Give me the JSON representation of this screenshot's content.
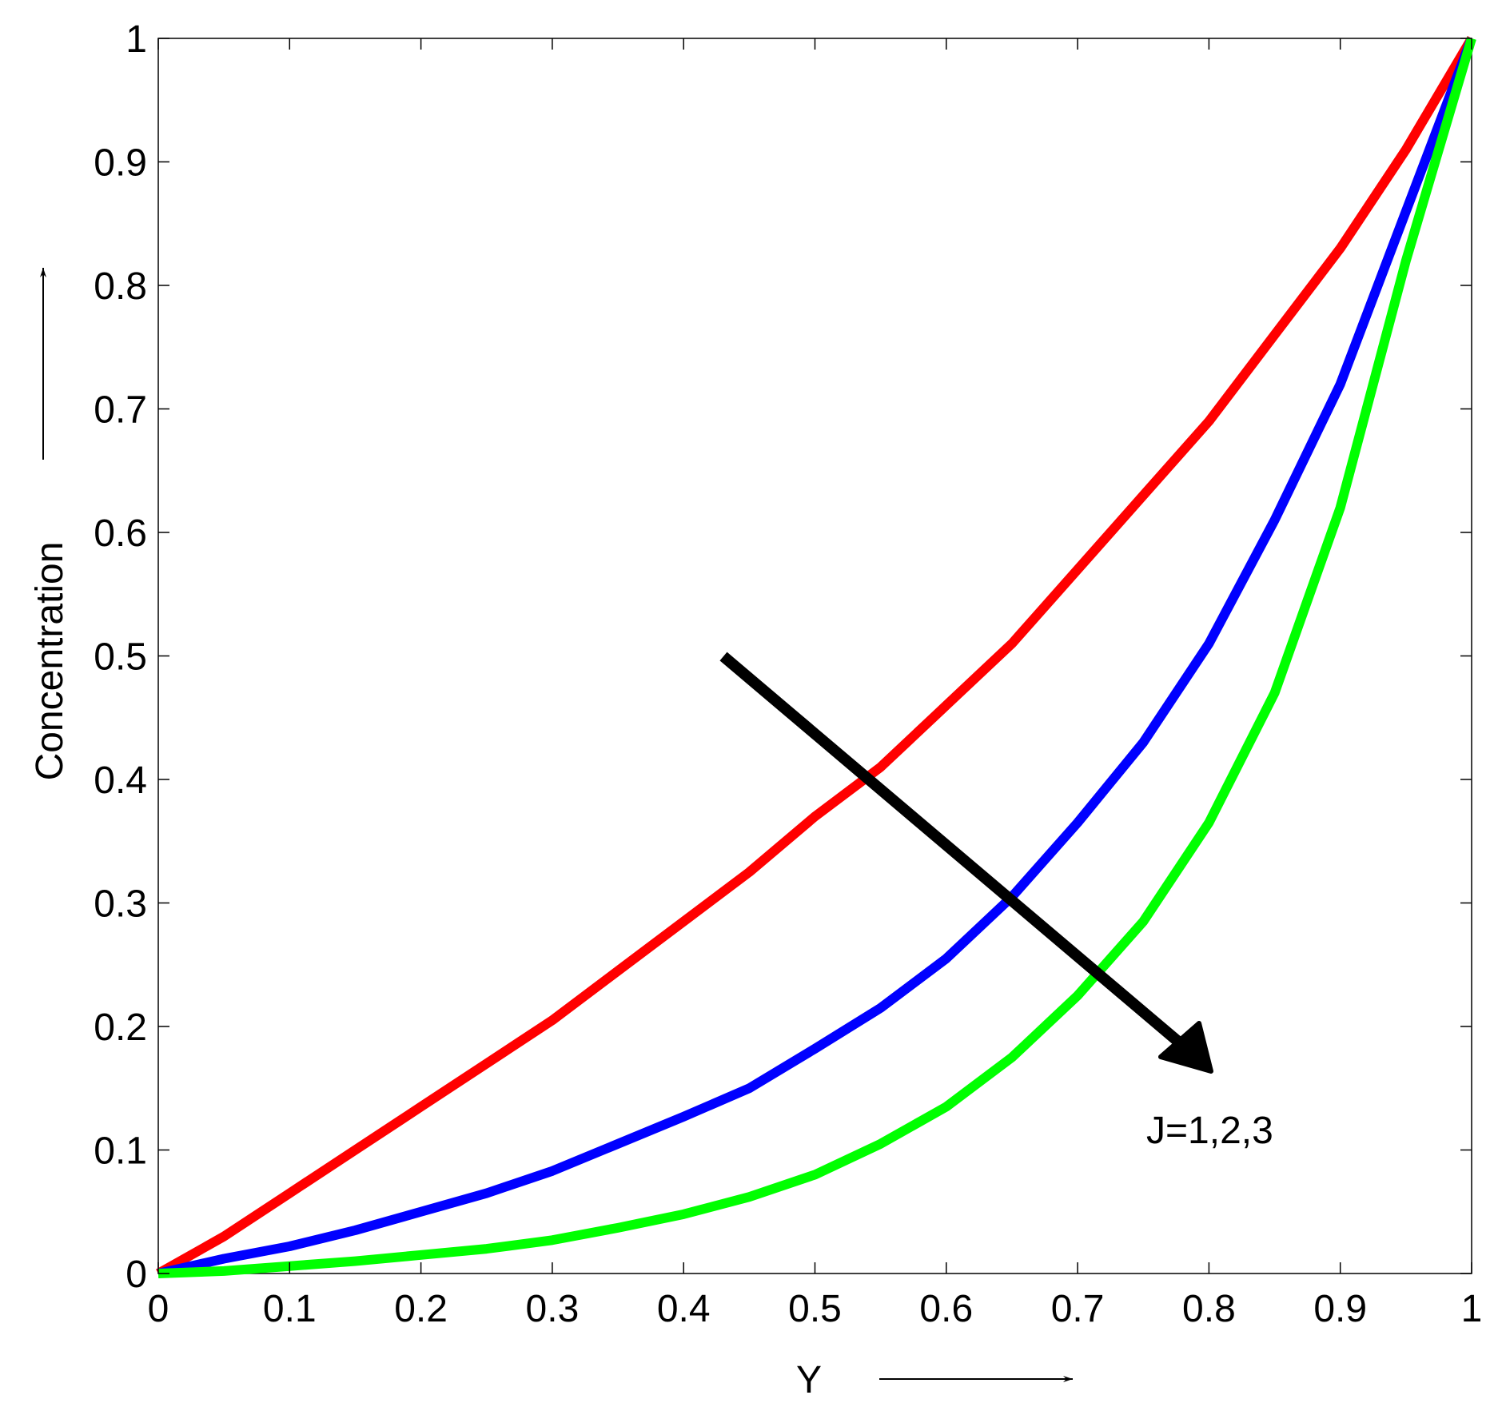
{
  "chart_data": {
    "type": "line",
    "x_label": "Y",
    "y_label": "Concentration",
    "annotation": "J=1,2,3",
    "x": [
      0,
      0.05,
      0.1,
      0.15,
      0.2,
      0.25,
      0.3,
      0.35,
      0.4,
      0.45,
      0.5,
      0.55,
      0.6,
      0.65,
      0.7,
      0.75,
      0.8,
      0.85,
      0.9,
      0.95,
      1
    ],
    "series": [
      {
        "color": "#ff0000",
        "values": [
          0,
          0.03,
          0.065,
          0.1,
          0.135,
          0.17,
          0.205,
          0.245,
          0.285,
          0.325,
          0.37,
          0.41,
          0.46,
          0.51,
          0.57,
          0.63,
          0.69,
          0.76,
          0.83,
          0.91,
          1
        ]
      },
      {
        "color": "#0000ff",
        "values": [
          0,
          0.012,
          0.022,
          0.035,
          0.05,
          0.065,
          0.083,
          0.105,
          0.127,
          0.15,
          0.182,
          0.215,
          0.255,
          0.305,
          0.365,
          0.43,
          0.51,
          0.61,
          0.72,
          0.86,
          1
        ]
      },
      {
        "color": "#00ff00",
        "values": [
          0,
          0.002,
          0.006,
          0.01,
          0.015,
          0.02,
          0.027,
          0.037,
          0.048,
          0.062,
          0.08,
          0.105,
          0.135,
          0.175,
          0.225,
          0.285,
          0.365,
          0.47,
          0.62,
          0.82,
          1
        ]
      }
    ],
    "xlim": [
      0,
      1
    ],
    "ylim": [
      0,
      1
    ],
    "xticks": [
      0,
      0.1,
      0.2,
      0.3,
      0.4,
      0.5,
      0.6,
      0.7,
      0.8,
      0.9,
      1
    ],
    "yticks": [
      0,
      0.1,
      0.2,
      0.3,
      0.4,
      0.5,
      0.6,
      0.7,
      0.8,
      0.9,
      1
    ]
  }
}
